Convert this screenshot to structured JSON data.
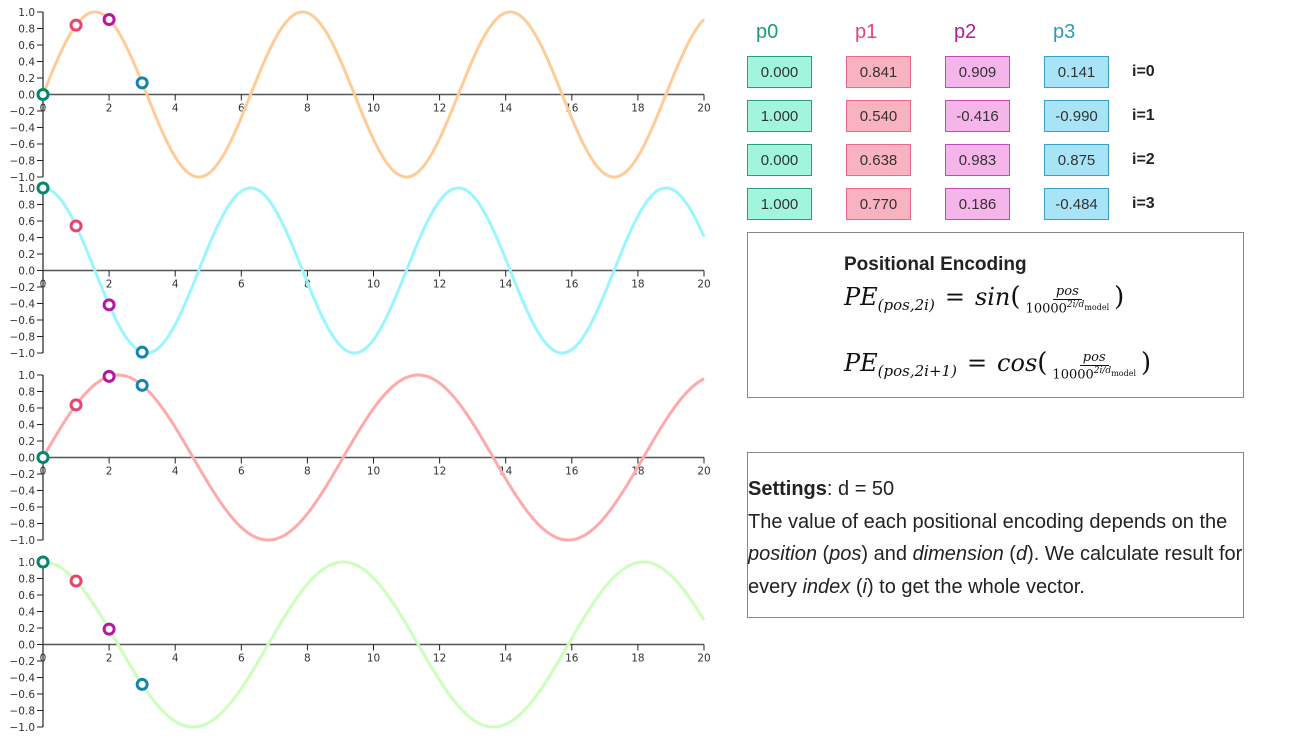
{
  "chart_data": [
    {
      "type": "line",
      "title": "",
      "series": [
        {
          "name": "sin(x)",
          "function": "sin(x)",
          "color": "#ffcc99"
        }
      ],
      "x_range": [
        0,
        20
      ],
      "ylim": [
        -1,
        1
      ],
      "xticks": [
        0,
        2,
        4,
        6,
        8,
        10,
        12,
        14,
        16,
        18,
        20
      ],
      "yticks": [
        1.0,
        0.8,
        0.6,
        0.4,
        0.2,
        0.0,
        -0.2,
        -0.4,
        -0.6,
        -0.8,
        -1.0
      ],
      "points": [
        {
          "x": 0,
          "y": 0.0,
          "color": "#00876c"
        },
        {
          "x": 1,
          "y": 0.841,
          "color": "#e8446e"
        },
        {
          "x": 2,
          "y": 0.909,
          "color": "#b5179e"
        },
        {
          "x": 3,
          "y": 0.141,
          "color": "#1485b0"
        }
      ]
    },
    {
      "type": "line",
      "title": "",
      "series": [
        {
          "name": "cos(x)",
          "function": "cos(x)",
          "color": "#99f6ff"
        }
      ],
      "x_range": [
        0,
        20
      ],
      "ylim": [
        -1,
        1
      ],
      "xticks": [
        0,
        2,
        4,
        6,
        8,
        10,
        12,
        14,
        16,
        18,
        20
      ],
      "yticks": [
        1.0,
        0.8,
        0.6,
        0.4,
        0.2,
        0.0,
        -0.2,
        -0.4,
        -0.6,
        -0.8,
        -1.0
      ],
      "points": [
        {
          "x": 0,
          "y": 1.0,
          "color": "#00876c"
        },
        {
          "x": 1,
          "y": 0.54,
          "color": "#e8446e"
        },
        {
          "x": 2,
          "y": -0.416,
          "color": "#b5179e"
        },
        {
          "x": 3,
          "y": -0.99,
          "color": "#1485b0"
        }
      ]
    },
    {
      "type": "line",
      "title": "",
      "series": [
        {
          "name": "sin(x/10000^(2/50))",
          "function": "sin(0.6918x)",
          "color": "#ffaaaa"
        }
      ],
      "x_range": [
        0,
        20
      ],
      "ylim": [
        -1,
        1
      ],
      "xticks": [
        0,
        2,
        4,
        6,
        8,
        10,
        12,
        14,
        16,
        18,
        20
      ],
      "yticks": [
        1.0,
        0.8,
        0.6,
        0.4,
        0.2,
        0.0,
        -0.2,
        -0.4,
        -0.6,
        -0.8,
        -1.0
      ],
      "points": [
        {
          "x": 0,
          "y": 0.0,
          "color": "#00876c"
        },
        {
          "x": 1,
          "y": 0.638,
          "color": "#e8446e"
        },
        {
          "x": 2,
          "y": 0.983,
          "color": "#b5179e"
        },
        {
          "x": 3,
          "y": 0.875,
          "color": "#1485b0"
        }
      ]
    },
    {
      "type": "line",
      "title": "",
      "series": [
        {
          "name": "cos(x/10000^(2/50))",
          "function": "cos(0.6918x)",
          "color": "#ccffbb"
        }
      ],
      "x_range": [
        0,
        20
      ],
      "ylim": [
        -1,
        1
      ],
      "xticks": [
        0,
        2,
        4,
        6,
        8,
        10,
        12,
        14,
        16,
        18,
        20
      ],
      "yticks": [
        1.0,
        0.8,
        0.6,
        0.4,
        0.2,
        0.0,
        -0.2,
        -0.4,
        -0.6,
        -0.8,
        -1.0
      ],
      "points": [
        {
          "x": 0,
          "y": 1.0,
          "color": "#00876c"
        },
        {
          "x": 1,
          "y": 0.77,
          "color": "#e8446e"
        },
        {
          "x": 2,
          "y": 0.186,
          "color": "#b5179e"
        },
        {
          "x": 3,
          "y": -0.484,
          "color": "#1485b0"
        }
      ]
    }
  ],
  "table": {
    "columns": [
      {
        "label": "p0",
        "color": "#1a9b7a",
        "fill": "#a0f5dc",
        "border": "#2a9d7f"
      },
      {
        "label": "p1",
        "color": "#e8446e",
        "fill": "#f8b2c0",
        "border": "#e8688a"
      },
      {
        "label": "p2",
        "color": "#b5179e",
        "fill": "#f5b5ea",
        "border": "#c04cb5"
      },
      {
        "label": "p3",
        "color": "#2a9bc0",
        "fill": "#a8e4f7",
        "border": "#3a9fc4"
      }
    ],
    "rows": [
      {
        "label": "i=0",
        "values": [
          "0.000",
          "0.841",
          "0.909",
          "0.141"
        ]
      },
      {
        "label": "i=1",
        "values": [
          "1.000",
          "0.540",
          "-0.416",
          "-0.990"
        ]
      },
      {
        "label": "i=2",
        "values": [
          "0.000",
          "0.638",
          "0.983",
          "0.875"
        ]
      },
      {
        "label": "i=3",
        "values": [
          "1.000",
          "0.770",
          "0.186",
          "-0.484"
        ]
      }
    ]
  },
  "formula": {
    "title": "Positional Encoding",
    "pe": "PE",
    "sub_sin": "(pos,2i)",
    "sub_cos": "(pos,2i+1)",
    "eq": "=",
    "sin": "sin",
    "cos": "cos",
    "num": "pos",
    "den_base": "10000",
    "den_exp": "2i/d",
    "den_exp_sub": "model"
  },
  "settings": {
    "label": "Settings",
    "value": ": d = 50",
    "desc_1": "The value of each positional encoding depends on the ",
    "position": "position",
    "open1": " (",
    "pos": "pos",
    "close1": ") and ",
    "dimension": "dimension",
    "open2": " (",
    "d": "d",
    "close2": "). We calculate result for every ",
    "index": "index",
    "open3": " (",
    "i": "i",
    "close3": ") to get the whole vector."
  }
}
